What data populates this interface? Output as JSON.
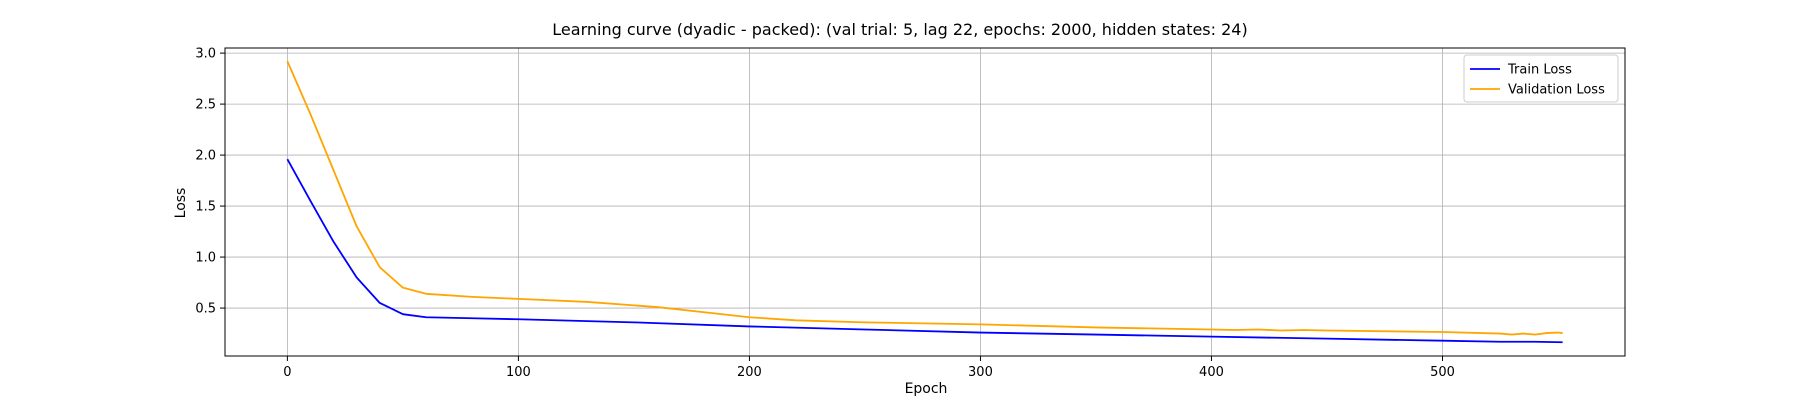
{
  "chart_data": {
    "type": "line",
    "title": "Learning curve (dyadic - packed): (val trial: 5, lag 22, epochs: 2000, hidden states: 24)",
    "xlabel": "Epoch",
    "ylabel": "Loss",
    "xlim": [
      -27,
      579
    ],
    "ylim": [
      0.03,
      3.05
    ],
    "x_ticks": [
      0,
      100,
      200,
      300,
      400,
      500
    ],
    "y_ticks": [
      0.5,
      1.0,
      1.5,
      2.0,
      2.5,
      3.0
    ],
    "x_tick_labels": [
      "0",
      "100",
      "200",
      "300",
      "400",
      "500"
    ],
    "y_tick_labels": [
      "0.5",
      "1.0",
      "1.5",
      "2.0",
      "2.5",
      "3.0"
    ],
    "grid": true,
    "legend_position": "top-right",
    "series": [
      {
        "name": "Train Loss",
        "color": "#0000ff",
        "x": [
          0,
          10,
          20,
          30,
          40,
          50,
          60,
          80,
          100,
          150,
          200,
          250,
          300,
          350,
          400,
          450,
          500,
          525,
          530,
          540,
          552
        ],
        "y": [
          1.96,
          1.55,
          1.15,
          0.8,
          0.55,
          0.44,
          0.41,
          0.4,
          0.39,
          0.36,
          0.32,
          0.29,
          0.26,
          0.24,
          0.22,
          0.2,
          0.18,
          0.17,
          0.17,
          0.17,
          0.165
        ]
      },
      {
        "name": "Validation Loss",
        "color": "#ffa500",
        "x": [
          0,
          10,
          20,
          30,
          40,
          50,
          60,
          80,
          100,
          130,
          160,
          180,
          200,
          220,
          250,
          300,
          350,
          400,
          410,
          420,
          430,
          440,
          450,
          500,
          525,
          530,
          535,
          540,
          545,
          550,
          552
        ],
        "y": [
          2.92,
          2.4,
          1.85,
          1.3,
          0.9,
          0.7,
          0.64,
          0.61,
          0.59,
          0.56,
          0.51,
          0.46,
          0.41,
          0.38,
          0.36,
          0.34,
          0.31,
          0.29,
          0.285,
          0.29,
          0.28,
          0.285,
          0.28,
          0.265,
          0.25,
          0.24,
          0.25,
          0.24,
          0.255,
          0.26,
          0.255
        ]
      }
    ]
  }
}
